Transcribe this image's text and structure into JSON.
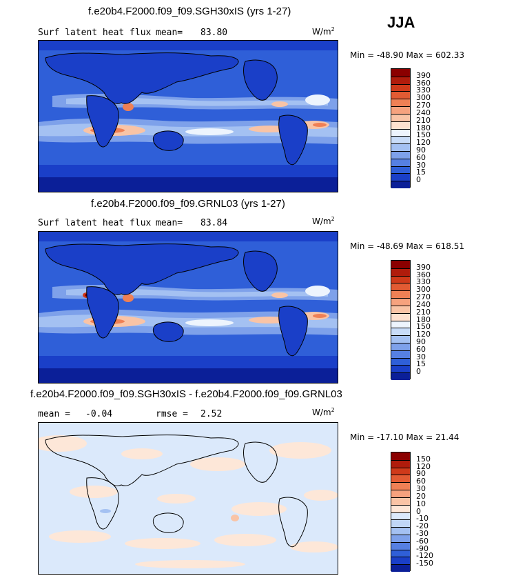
{
  "season": "JJA",
  "units_base": "W/m",
  "units_exp": "2",
  "panels": [
    {
      "title": "f.e20b4.F2000.f09_f09.SGH30xIS (yrs 1-27)",
      "left_label": "Surf latent heat flux",
      "stat1_label": "mean=",
      "stat1_value": "83.80",
      "min_label": "Min =",
      "min_value": "-48.90",
      "max_label": "Max =",
      "max_value": "602.33",
      "colorbar": {
        "labels": [
          "390",
          "360",
          "330",
          "300",
          "270",
          "240",
          "210",
          "180",
          "150",
          "120",
          "90",
          "60",
          "30",
          "15",
          "0"
        ],
        "colors": [
          "#8b0000",
          "#b01c0c",
          "#cf3a1a",
          "#e25b33",
          "#ef8055",
          "#f6a27e",
          "#f9c4a6",
          "#fde1cf",
          "#edf4fd",
          "#c8dcf8",
          "#a4c1f2",
          "#7ea1ea",
          "#5680e2",
          "#2f5fd8",
          "#1a3fc8",
          "#0b1f98"
        ]
      }
    },
    {
      "title": "f.e20b4.F2000.f09_f09.GRNL03 (yrs 1-27)",
      "left_label": "Surf latent heat flux",
      "stat1_label": "mean=",
      "stat1_value": "83.84",
      "min_label": "Min =",
      "min_value": "-48.69",
      "max_label": "Max =",
      "max_value": "618.51",
      "colorbar": {
        "labels": [
          "390",
          "360",
          "330",
          "300",
          "270",
          "240",
          "210",
          "180",
          "150",
          "120",
          "90",
          "60",
          "30",
          "15",
          "0"
        ],
        "colors": [
          "#8b0000",
          "#b01c0c",
          "#cf3a1a",
          "#e25b33",
          "#ef8055",
          "#f6a27e",
          "#f9c4a6",
          "#fde1cf",
          "#edf4fd",
          "#c8dcf8",
          "#a4c1f2",
          "#7ea1ea",
          "#5680e2",
          "#2f5fd8",
          "#1a3fc8",
          "#0b1f98"
        ]
      }
    },
    {
      "title": "f.e20b4.F2000.f09_f09.SGH30xIS - f.e20b4.F2000.f09_f09.GRNL03",
      "left_label": "mean =",
      "stat1_value": "-0.04",
      "stat2_label": "rmse =",
      "stat2_value": "2.52",
      "min_label": "Min =",
      "min_value": "-17.10",
      "max_label": "Max =",
      "max_value": "21.44",
      "colorbar": {
        "labels": [
          "150",
          "120",
          "90",
          "60",
          "30",
          "20",
          "10",
          "0",
          "-10",
          "-20",
          "-30",
          "-60",
          "-90",
          "-120",
          "-150"
        ],
        "colors": [
          "#8b0000",
          "#b01c0c",
          "#cf3a1a",
          "#e25b33",
          "#ef8055",
          "#f6a27e",
          "#f9c4a6",
          "#fde7d8",
          "#dbe9fb",
          "#c0d6f6",
          "#a4c1f2",
          "#7ea1ea",
          "#5680e2",
          "#2f5fd8",
          "#1a3fc8",
          "#0b1f98"
        ]
      }
    }
  ]
}
